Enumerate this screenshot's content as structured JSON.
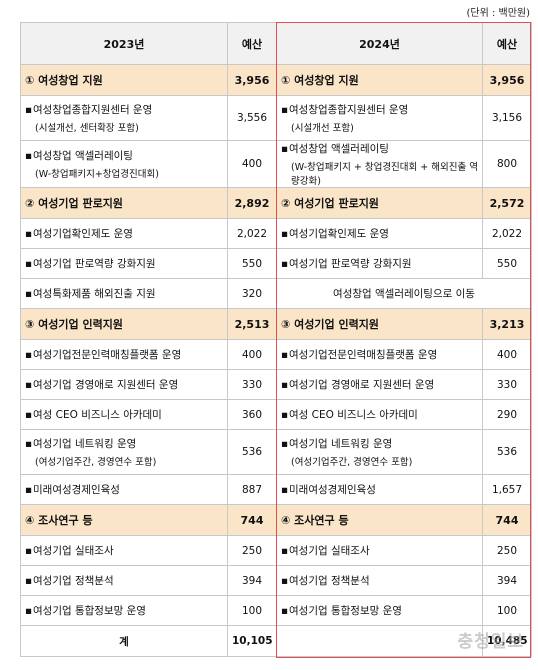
{
  "unit_note": "(단위 : 백만원)",
  "headers": {
    "y2023": "2023년",
    "budget2023": "예산",
    "y2024": "2024년",
    "budget2024": "예산"
  },
  "rows": [
    {
      "type": "cat",
      "l": "① 여성창업 지원",
      "lv": "3,956",
      "r": "① 여성창업 지원",
      "rv": "3,956"
    },
    {
      "type": "r2",
      "l": "여성창업종합지원센터 운영",
      "ls": "(시설개선, 센터확장 포함)",
      "lv": "3,556",
      "r": "여성창업종합지원센터 운영",
      "rs": "(시설개선 포함)",
      "rv": "3,156"
    },
    {
      "type": "r2",
      "l": "여성창업 액셀러레이팅",
      "ls": "(W-창업패키지+창업경진대회)",
      "lv": "400",
      "r": "여성창업 액셀러레이팅",
      "rs": "(W-창업패키지 + 창업경진대회 + 해외진출 역량강화)",
      "rv": "800"
    },
    {
      "type": "cat",
      "l": "② 여성기업 판로지원",
      "lv": "2,892",
      "r": "② 여성기업 판로지원",
      "rv": "2,572"
    },
    {
      "type": "r1",
      "l": "여성기업확인제도 운영",
      "lv": "2,022",
      "r": "여성기업확인제도 운영",
      "rv": "2,022"
    },
    {
      "type": "r1",
      "l": "여성기업 판로역량 강화지원",
      "lv": "550",
      "r": "여성기업 판로역량 강화지원",
      "rv": "550"
    },
    {
      "type": "merge",
      "l": "여성특화제품 해외진출 지원",
      "lv": "320",
      "r": "여성창업 액셀러레이팅으로 이동"
    },
    {
      "type": "cat",
      "l": "③ 여성기업 인력지원",
      "lv": "2,513",
      "r": "③ 여성기업 인력지원",
      "rv": "3,213"
    },
    {
      "type": "r1",
      "l": "여성기업전문인력매칭플랫폼 운영",
      "lv": "400",
      "r": "여성기업전문인력매칭플랫폼 운영",
      "rv": "400"
    },
    {
      "type": "r1",
      "l": "여성기업 경영애로 지원센터 운영",
      "lv": "330",
      "r": "여성기업 경영애로 지원센터 운영",
      "rv": "330"
    },
    {
      "type": "r1",
      "l": "여성 CEO 비즈니스 아카데미",
      "lv": "360",
      "r": "여성 CEO 비즈니스 아카데미",
      "rv": "290"
    },
    {
      "type": "r2",
      "l": "여성기업 네트워킹 운영",
      "ls": "(여성기업주간, 경영연수 포함)",
      "lv": "536",
      "r": "여성기업 네트워킹 운영",
      "rs": "(여성기업주간, 경영연수 포함)",
      "rv": "536"
    },
    {
      "type": "r1",
      "l": "미래여성경제인육성",
      "lv": "887",
      "r": "미래여성경제인육성",
      "rv": "1,657"
    },
    {
      "type": "cat",
      "l": "④ 조사연구 등",
      "lv": "744",
      "r": "④ 조사연구 등",
      "rv": "744"
    },
    {
      "type": "r1",
      "l": "여성기업 실태조사",
      "lv": "250",
      "r": "여성기업 실태조사",
      "rv": "250"
    },
    {
      "type": "r1",
      "l": "여성기업 정책분석",
      "lv": "394",
      "r": "여성기업 정책분석",
      "rv": "394"
    },
    {
      "type": "r1",
      "l": "여성기업 통합정보망 운영",
      "lv": "100",
      "r": "여성기업 통합정보망 운영",
      "rv": "100"
    }
  ],
  "total": {
    "label": "계",
    "v2023": "10,105",
    "v2024": "10,485"
  },
  "bullet": "▪",
  "watermark": "충청일보"
}
